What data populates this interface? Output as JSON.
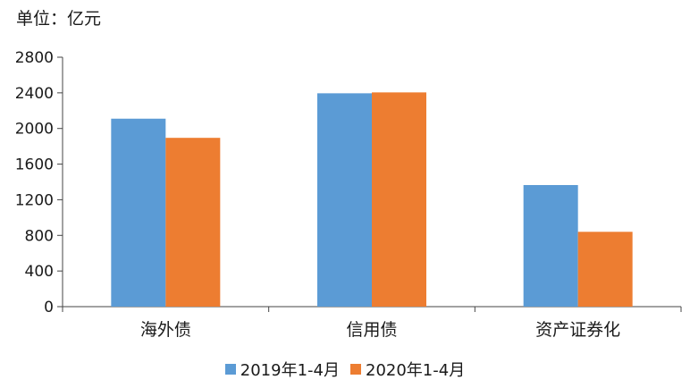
{
  "unit_label": "单位：亿元",
  "chart_data": {
    "type": "bar",
    "title": "",
    "xlabel": "",
    "ylabel": "",
    "categories": [
      "海外债",
      "信用债",
      "资产证券化"
    ],
    "series": [
      {
        "name": "2019年1-4月",
        "values": [
          2110,
          2395,
          1365
        ],
        "color": "#5B9BD5"
      },
      {
        "name": "2020年1-4月",
        "values": [
          1895,
          2405,
          840
        ],
        "color": "#ED7D31"
      }
    ],
    "ylim": [
      0,
      2800
    ],
    "yticks": [
      0,
      400,
      800,
      1200,
      1600,
      2000,
      2400,
      2800
    ],
    "grid": false,
    "legend_position": "bottom"
  }
}
